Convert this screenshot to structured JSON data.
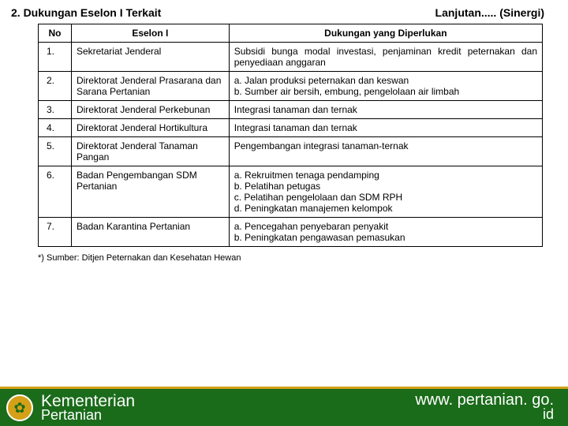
{
  "header": {
    "left": "2.  Dukungan Eselon I Terkait",
    "right": "Lanjutan..... (Sinergi)"
  },
  "table": {
    "columns": [
      "No",
      "Eselon I",
      "Dukungan yang Diperlukan"
    ],
    "rows": [
      {
        "no": "1.",
        "eselon": "Sekretariat Jenderal",
        "dukungan": "Subsidi bunga modal investasi, penjaminan kredit peternakan dan penyediaan anggaran"
      },
      {
        "no": "2.",
        "eselon": "Direktorat Jenderal Prasarana dan Sarana Pertanian",
        "dukungan": "a. Jalan produksi peternakan dan keswan\nb. Sumber air bersih, embung, pengelolaan air limbah"
      },
      {
        "no": "3.",
        "eselon": "Direktorat Jenderal Perkebunan",
        "dukungan": "Integrasi tanaman dan ternak"
      },
      {
        "no": "4.",
        "eselon": "Direktorat Jenderal Hortikultura",
        "dukungan": "Integrasi tanaman dan ternak"
      },
      {
        "no": "5.",
        "eselon": "Direktorat Jenderal Tanaman Pangan",
        "dukungan": "Pengembangan integrasi tanaman-ternak"
      },
      {
        "no": "6.",
        "eselon": "Badan Pengembangan SDM Pertanian",
        "dukungan": "a. Rekruitmen tenaga pendamping\nb. Pelatihan petugas\nc. Pelatihan pengelolaan dan SDM RPH\nd. Peningkatan manajemen kelompok"
      },
      {
        "no": "7.",
        "eselon": "Badan Karantina Pertanian",
        "dukungan": "a. Pencegahan penyebaran penyakit\nb. Peningkatan pengawasan pemasukan"
      }
    ]
  },
  "footnote": "*) Sumber: Ditjen Peternakan dan Kesehatan Hewan",
  "footer": {
    "title": "Kementerian",
    "subtitle": "Pertanian",
    "url_top": "www. pertanian. go.",
    "url_bottom": "id"
  },
  "colors": {
    "footer_bg": "#1a6b1a",
    "footer_border": "#d4a017",
    "logo_bg": "#d4a017",
    "text": "#000000"
  }
}
